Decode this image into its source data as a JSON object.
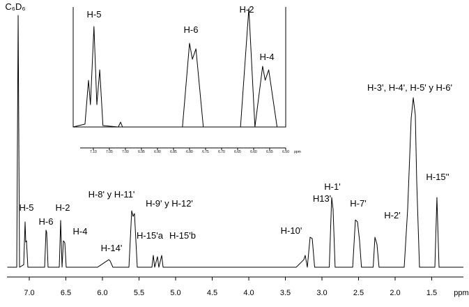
{
  "chart_data": [
    {
      "type": "line",
      "color": "#000000",
      "xlabel": "ppm",
      "xlim": [
        7.3,
        1.0
      ],
      "xticks": [
        {
          "value": 7,
          "label": "7.0"
        },
        6.5,
        {
          "value": 6,
          "label": "6.0"
        },
        5.5,
        {
          "value": 5,
          "label": "5.0"
        },
        4.5,
        {
          "value": 4,
          "label": "4.0"
        },
        3.5,
        {
          "value": 3,
          "label": "3.0"
        },
        2.5,
        {
          "value": 2,
          "label": "2.0"
        },
        1.5
      ],
      "x": [
        7.3,
        7.171,
        7.152,
        7.133,
        7.076,
        7.057,
        7.048,
        7.038,
        7.019,
        6.79,
        6.771,
        6.762,
        6.743,
        6.59,
        6.571,
        6.552,
        6.533,
        6.514,
        6.495,
        6.067,
        5.914,
        5.895,
        5.857,
        5.638,
        5.6,
        5.581,
        5.562,
        5.524,
        5.324,
        5.305,
        5.286,
        5.248,
        5.229,
        5.19,
        5.171,
        3.352,
        3.248,
        3.229,
        3.2,
        3.162,
        3.133,
        3.1,
        2.9,
        2.867,
        2.848,
        2.82,
        2.58,
        2.543,
        2.514,
        2.486,
        2.46,
        2.3,
        2.276,
        2.248,
        2.22,
        1.876,
        1.829,
        1.781,
        1.752,
        1.724,
        1.705,
        1.667,
        1.457,
        1.429,
        1.4,
        1.067
      ],
      "values": [
        0,
        0,
        100,
        0,
        1,
        18,
        10,
        10.5,
        0,
        0,
        14.7,
        13.9,
        0,
        0,
        18.6,
        0,
        10.5,
        9.7,
        0,
        0,
        3,
        2.5,
        0,
        0,
        22.4,
        20.2,
        21.3,
        0,
        0,
        4.7,
        0,
        4.2,
        0,
        4.7,
        0,
        0,
        3,
        4.7,
        0,
        11.9,
        11.4,
        0,
        0,
        27.7,
        23,
        0,
        0,
        18.8,
        18,
        10.5,
        0,
        0,
        11.9,
        9.1,
        0,
        0,
        23,
        59,
        67.3,
        60.4,
        34,
        0,
        0,
        27.7,
        0,
        0
      ],
      "annotations": [
        "C₆D₆",
        "H-5",
        "H-6",
        "H-2",
        "H-4",
        "H-14'",
        "H-8' y H-11'",
        "H-9' y H-12'",
        "H-15'a",
        "H-15'b",
        "H-10'",
        "H13'",
        "H-1'",
        "H-7'",
        "H-2'",
        "H-3', H-4', H-5' y H-6'",
        "H-15''"
      ]
    },
    {
      "type": "line",
      "color": "#000000",
      "xlabel": "ppm",
      "xlim": [
        7.165,
        6.47
      ],
      "xticks": [
        {
          "value": 7.1,
          "label": "7.10"
        },
        7.05,
        {
          "value": 7,
          "label": "7.00"
        },
        6.95,
        {
          "value": 6.9,
          "label": "6.90"
        },
        6.85,
        {
          "value": 6.8,
          "label": "6.80"
        },
        6.75,
        {
          "value": 6.7,
          "label": "6.70"
        },
        6.65,
        {
          "value": 6.6,
          "label": "6.60"
        },
        6.55,
        {
          "value": 6.5,
          "label": "6.50"
        }
      ],
      "x": [
        7.163,
        7.126,
        7.115,
        7.109,
        7.098,
        7.089,
        7.08,
        7.07,
        7.022,
        7.015,
        7.009,
        6.822,
        6.8,
        6.791,
        6.78,
        6.757,
        6.641,
        6.615,
        6.596,
        6.572,
        6.564,
        6.553,
        6.527,
        6.5
      ],
      "values": [
        0,
        2.4,
        39.4,
        18.8,
        84.7,
        18.8,
        48.2,
        1.2,
        0,
        4.1,
        0,
        0,
        70.6,
        57.1,
        65.9,
        0,
        0,
        100,
        0,
        51.2,
        39.4,
        48.2,
        0,
        0
      ],
      "annotations": [
        "H-5",
        "H-6",
        "H-2",
        "H-4"
      ]
    }
  ]
}
